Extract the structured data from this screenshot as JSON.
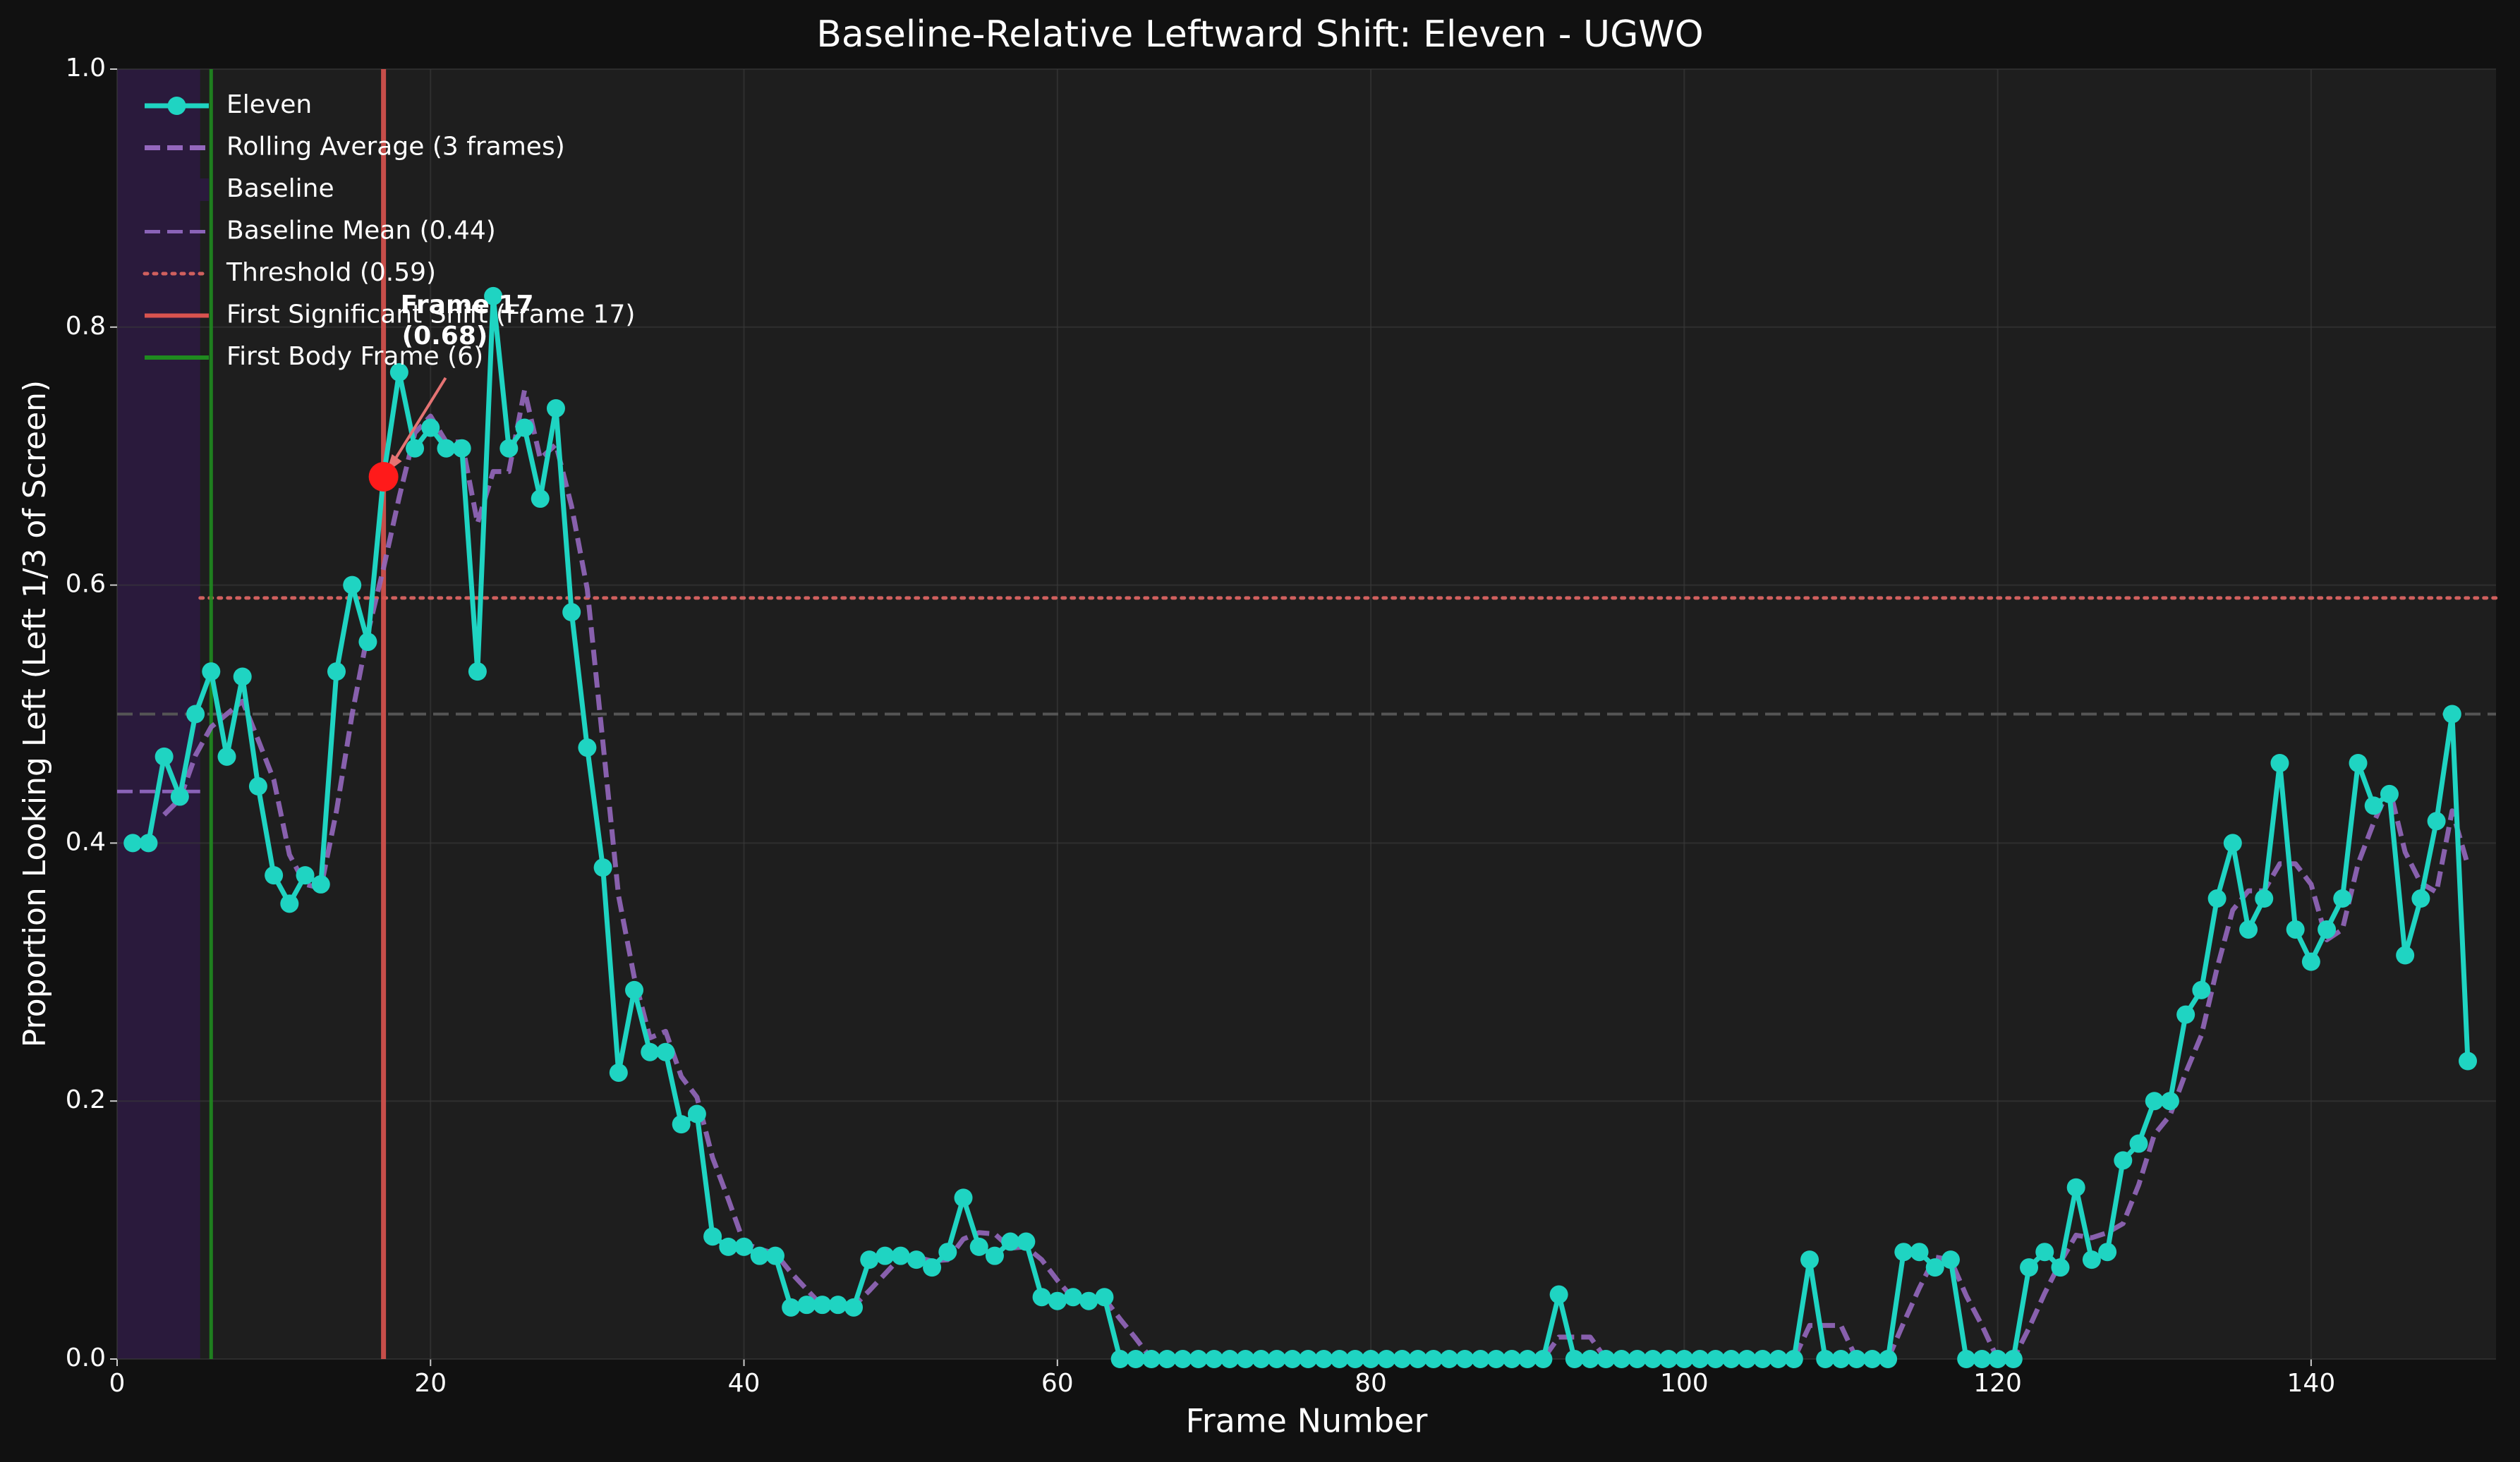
{
  "chart_data": {
    "type": "line",
    "title": "Baseline-Relative Leftward Shift: Eleven - UGWO",
    "x_label": "Frame Number",
    "y_label": "Proportion Looking Left (Left 1/3 of Screen)",
    "xlim": [
      0,
      151.8
    ],
    "ylim": [
      0,
      1
    ],
    "xticks": [
      0,
      20,
      40,
      60,
      80,
      100,
      120,
      140
    ],
    "yticks": [
      {
        "value": 0,
        "label": "0.0"
      },
      0.2,
      0.4,
      0.6,
      0.8,
      {
        "value": 1,
        "label": "1.0"
      }
    ],
    "grid": true,
    "legend": "upper left",
    "x": [
      1,
      2,
      3,
      4,
      5,
      6,
      7,
      8,
      9,
      10,
      11,
      12,
      13,
      14,
      15,
      16,
      17,
      18,
      19,
      20,
      21,
      22,
      23,
      24,
      25,
      26,
      27,
      28,
      29,
      30,
      31,
      32,
      33,
      34,
      35,
      36,
      37,
      38,
      39,
      40,
      41,
      42,
      43,
      44,
      45,
      46,
      47,
      48,
      49,
      50,
      51,
      52,
      53,
      54,
      55,
      56,
      57,
      58,
      59,
      60,
      61,
      62,
      63,
      64,
      65,
      66,
      67,
      68,
      69,
      70,
      71,
      72,
      73,
      74,
      75,
      76,
      77,
      78,
      79,
      80,
      81,
      82,
      83,
      84,
      85,
      86,
      87,
      88,
      89,
      90,
      91,
      92,
      93,
      94,
      95,
      96,
      97,
      98,
      99,
      100,
      101,
      102,
      103,
      104,
      105,
      106,
      107,
      108,
      109,
      110,
      111,
      112,
      113,
      114,
      115,
      116,
      117,
      118,
      119,
      120,
      121,
      122,
      123,
      124,
      125,
      126,
      127,
      128,
      129,
      130,
      131,
      132,
      133,
      134,
      135,
      136,
      137,
      138,
      139,
      140,
      141,
      142,
      143,
      144,
      145,
      146,
      147,
      148,
      149,
      150
    ],
    "series": [
      {
        "name": "Eleven",
        "color": "#1fd4c2",
        "style": "solid",
        "markers": true,
        "values": [
          0.4,
          0.4,
          0.467,
          0.436,
          0.5,
          0.533,
          0.467,
          0.529,
          0.444,
          0.375,
          0.353,
          0.375,
          0.368,
          0.533,
          0.6,
          0.556,
          0.684,
          0.765,
          0.706,
          0.722,
          0.706,
          0.706,
          0.533,
          0.824,
          0.706,
          0.722,
          0.667,
          0.737,
          0.579,
          0.474,
          0.381,
          0.222,
          0.286,
          0.238,
          0.238,
          0.182,
          0.19,
          0.095,
          0.087,
          0.087,
          0.08,
          0.08,
          0.04,
          0.042,
          0.042,
          0.042,
          0.04,
          0.077,
          0.08,
          0.08,
          0.077,
          0.071,
          0.083,
          0.125,
          0.087,
          0.08,
          0.091,
          0.091,
          0.048,
          0.045,
          0.048,
          0.045,
          0.048,
          0,
          0,
          0,
          0,
          0,
          0,
          0,
          0,
          0,
          0,
          0,
          0,
          0,
          0,
          0,
          0,
          0,
          0,
          0,
          0,
          0,
          0,
          0,
          0,
          0,
          0,
          0,
          0,
          0.05,
          0,
          0,
          0,
          0,
          0,
          0,
          0,
          0,
          0,
          0,
          0,
          0,
          0,
          0,
          0,
          0.077,
          0,
          0,
          0,
          0,
          0,
          0.083,
          0.083,
          0.071,
          0.077,
          0,
          0,
          0,
          0,
          0.071,
          0.083,
          0.071,
          0.133,
          0.077,
          0.083,
          0.154,
          0.167,
          0.2,
          0.2,
          0.267,
          0.286,
          0.357,
          0.4,
          0.333,
          0.357,
          0.462,
          0.333,
          0.308,
          0.333,
          0.357,
          0.462,
          0.429,
          0.438,
          0.313,
          0.357,
          0.417,
          0.5,
          0.231
        ]
      },
      {
        "name": "Rolling Average (3 frames)",
        "color": "#9467bd",
        "style": "dashed",
        "markers": false,
        "values": [
          null,
          null,
          0.422,
          0.434,
          0.468,
          0.49,
          0.5,
          0.51,
          0.48,
          0.449,
          0.391,
          0.368,
          0.365,
          0.425,
          0.5,
          0.563,
          0.613,
          0.668,
          0.718,
          0.731,
          0.711,
          0.711,
          0.648,
          0.688,
          0.688,
          0.751,
          0.698,
          0.709,
          0.661,
          0.597,
          0.478,
          0.359,
          0.296,
          0.249,
          0.254,
          0.219,
          0.203,
          0.156,
          0.124,
          0.09,
          0.085,
          0.082,
          0.067,
          0.054,
          0.041,
          0.042,
          0.041,
          0.053,
          0.066,
          0.079,
          0.079,
          0.076,
          0.077,
          0.093,
          0.098,
          0.097,
          0.086,
          0.087,
          0.077,
          0.061,
          0.047,
          0.046,
          0.047,
          0.031,
          0.016,
          0,
          0,
          0,
          0,
          0,
          0,
          0,
          0,
          0,
          0,
          0,
          0,
          0,
          0,
          0,
          0,
          0,
          0,
          0,
          0,
          0,
          0,
          0,
          0,
          0,
          0,
          0.017,
          0.017,
          0.017,
          0,
          0,
          0,
          0,
          0,
          0,
          0,
          0,
          0,
          0,
          0,
          0,
          0,
          0.026,
          0.026,
          0.026,
          0,
          0,
          0,
          0.028,
          0.055,
          0.079,
          0.077,
          0.049,
          0.026,
          0,
          0,
          0.024,
          0.051,
          0.075,
          0.096,
          0.094,
          0.098,
          0.105,
          0.135,
          0.174,
          0.189,
          0.222,
          0.251,
          0.303,
          0.348,
          0.363,
          0.363,
          0.384,
          0.384,
          0.368,
          0.325,
          0.333,
          0.384,
          0.416,
          0.443,
          0.393,
          0.369,
          0.362,
          0.425,
          0.383
        ]
      }
    ],
    "baseline": {
      "name": "Baseline",
      "color": "#2a1a3c",
      "span": [
        0,
        5.3
      ]
    },
    "hlines": [
      {
        "name": "Baseline Mean (0.44)",
        "value": 0.44,
        "xrange": [
          0,
          5.3
        ],
        "color": "#8a63b8",
        "style": "dashed"
      },
      {
        "name": "Threshold (0.59)",
        "value": 0.59,
        "xrange": [
          5.3,
          151.8
        ],
        "color": "#d0605e",
        "style": "dotted"
      }
    ],
    "reference_line": {
      "value": 0.5,
      "color": "#555555",
      "style": "dashed"
    },
    "vlines": [
      {
        "name": "First Significant Shift (Frame 17)",
        "x": 17,
        "color": "#d9534f"
      },
      {
        "name": "First Body Frame (6)",
        "x": 6,
        "color": "#1f8a1f"
      }
    ],
    "annotation": {
      "lines": [
        "Frame 17",
        "(0.68)"
      ],
      "x": 17,
      "y": 0.684,
      "color": "#ff1a1a",
      "arrow_color": "#e57373"
    }
  }
}
